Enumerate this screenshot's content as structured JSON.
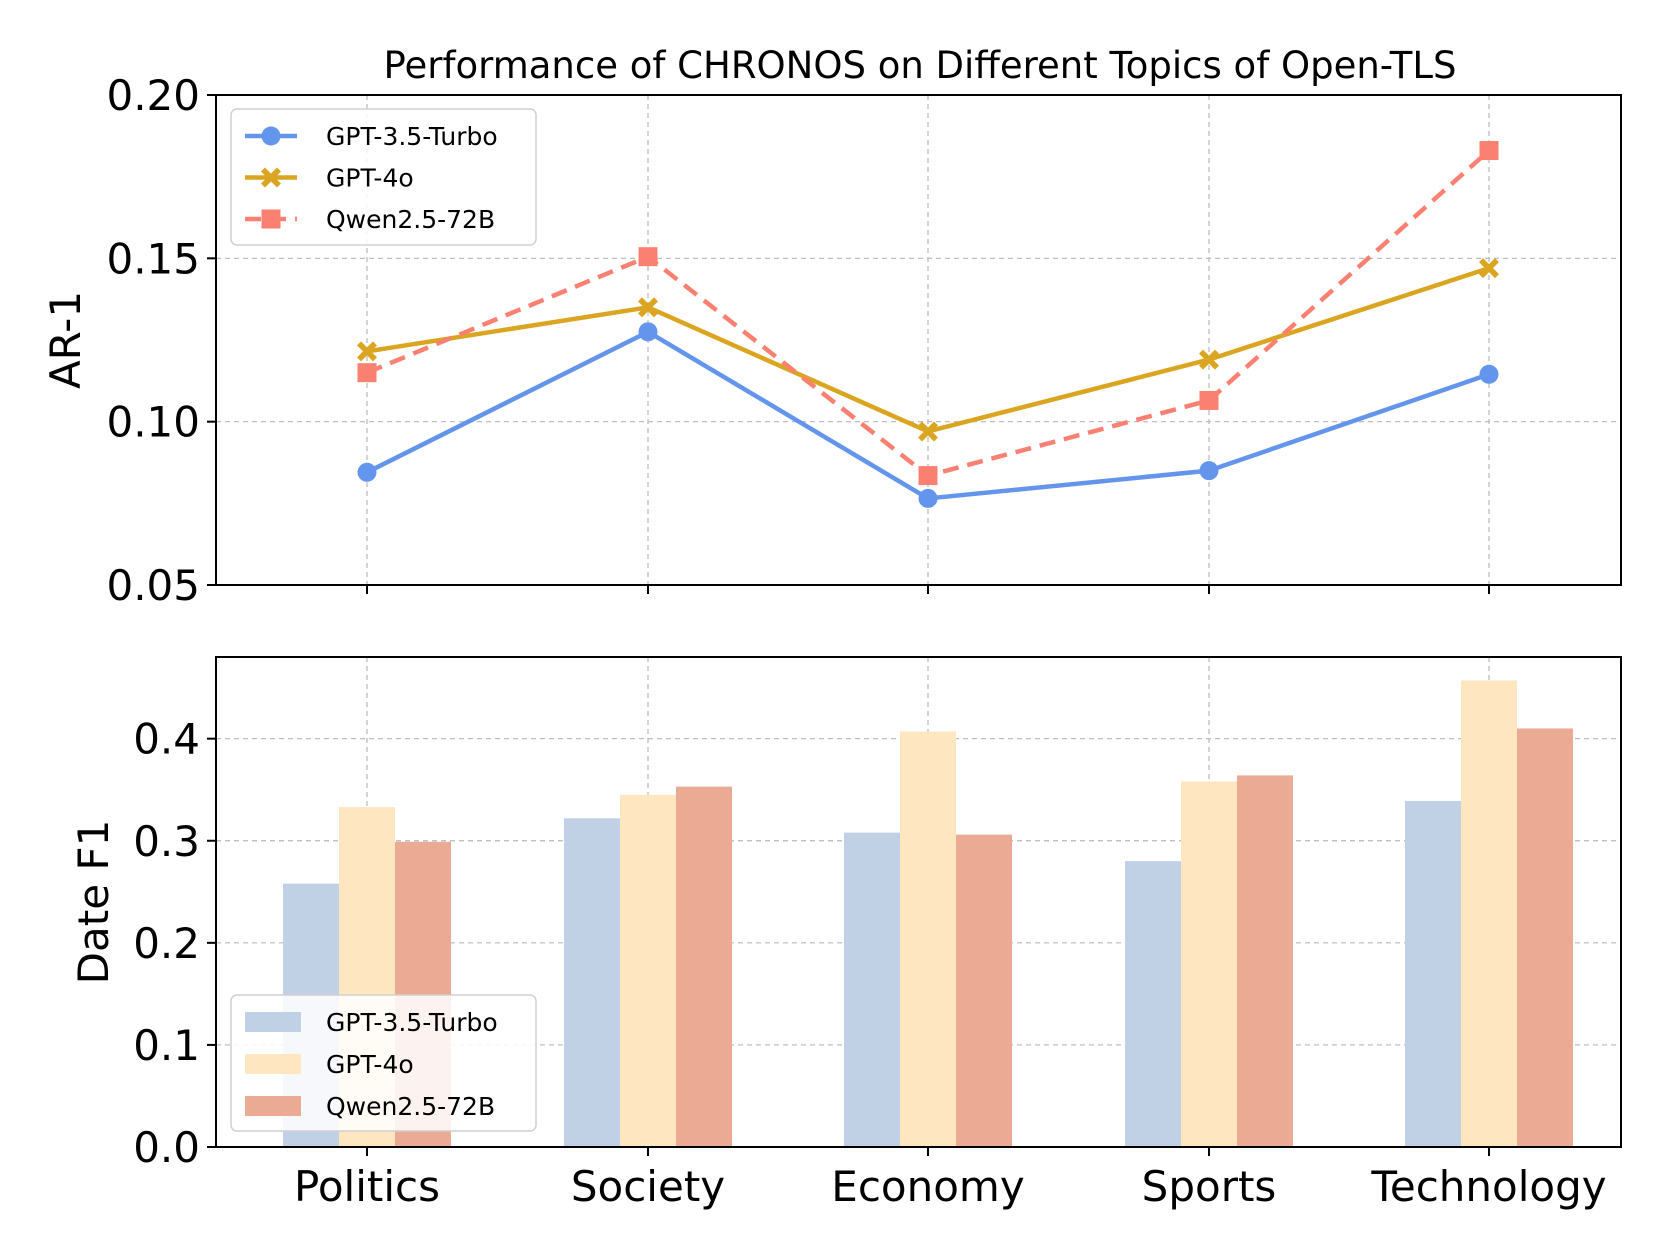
{
  "chart_data": [
    {
      "type": "line",
      "title": "Performance of CHRONOS on Different Topics of Open-TLS",
      "xlabel": "",
      "ylabel": "AR-1",
      "ylim": [
        0.05,
        0.2
      ],
      "yticks": [
        "0.05",
        "0.10",
        "0.15",
        "0.20"
      ],
      "grid": true,
      "legend_position": "top-left",
      "categories": [
        "Politics",
        "Society",
        "Economy",
        "Sports",
        "Technology"
      ],
      "series": [
        {
          "name": "GPT-3.5-Turbo",
          "values": [
            0.0845,
            0.1275,
            0.0765,
            0.085,
            0.1145
          ],
          "color": "#6495ED",
          "marker": "circle",
          "dash": false
        },
        {
          "name": "GPT-4o",
          "values": [
            0.1215,
            0.135,
            0.097,
            0.119,
            0.147
          ],
          "color": "#DAA520",
          "marker": "x-filled",
          "dash": false
        },
        {
          "name": "Qwen2.5-72B",
          "values": [
            0.115,
            0.1505,
            0.0835,
            0.1065,
            0.183
          ],
          "color": "#FA8072",
          "marker": "square",
          "dash": true
        }
      ]
    },
    {
      "type": "bar",
      "title": "",
      "xlabel": "",
      "ylabel": "Date F1",
      "ylim": [
        0.0,
        0.48
      ],
      "yticks": [
        "0.0",
        "0.1",
        "0.2",
        "0.3",
        "0.4"
      ],
      "grid": true,
      "legend_position": "bottom-left",
      "categories": [
        "Politics",
        "Society",
        "Economy",
        "Sports",
        "Technology"
      ],
      "series": [
        {
          "name": "GPT-3.5-Turbo",
          "values": [
            0.258,
            0.322,
            0.308,
            0.28,
            0.339
          ],
          "color": "#C0D1E6"
        },
        {
          "name": "GPT-4o",
          "values": [
            0.333,
            0.345,
            0.407,
            0.358,
            0.457
          ],
          "color": "#FEE6C1"
        },
        {
          "name": "Qwen2.5-72B",
          "values": [
            0.299,
            0.353,
            0.306,
            0.364,
            0.41
          ],
          "color": "#EBAA93"
        }
      ]
    }
  ]
}
